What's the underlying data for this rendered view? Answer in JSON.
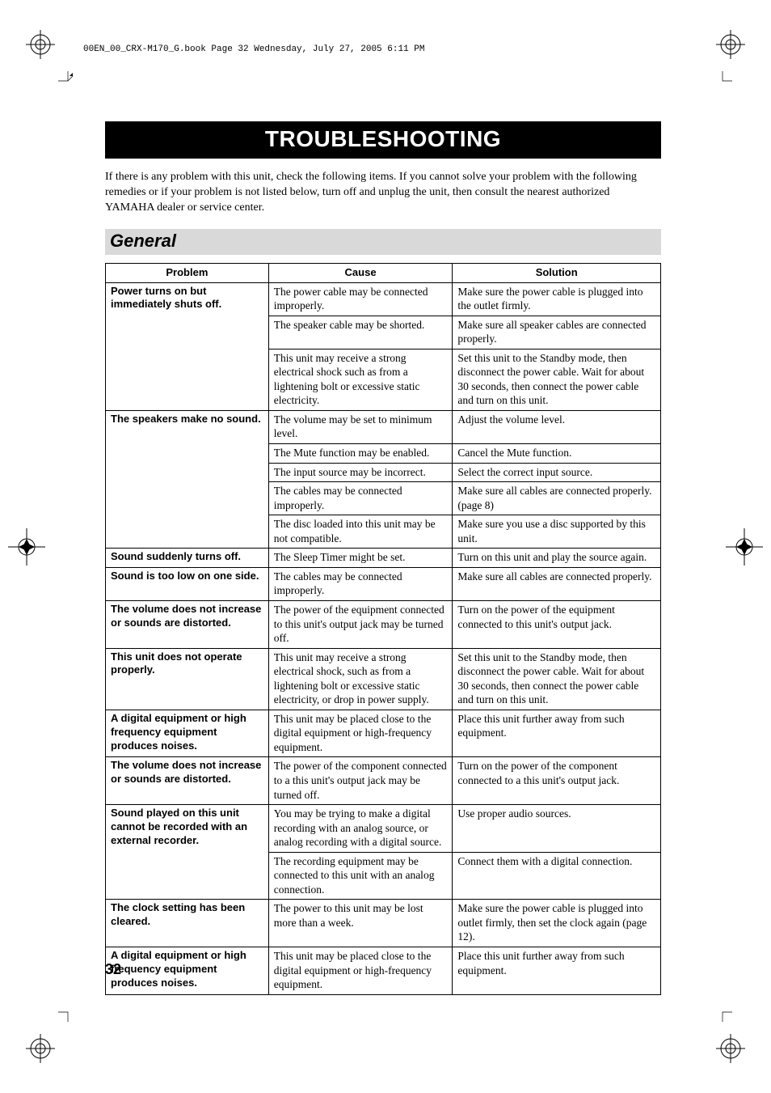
{
  "runhead": "00EN_00_CRX-M170_G.book  Page 32  Wednesday, July 27, 2005  6:11 PM",
  "title": "TROUBLESHOOTING",
  "intro": "If there is any problem with this unit, check the following items. If you cannot solve your problem with the following remedies or if your problem is not listed below, turn off and unplug the unit, then consult the nearest authorized YAMAHA dealer or service center.",
  "section": "General",
  "headers": {
    "problem": "Problem",
    "cause": "Cause",
    "solution": "Solution"
  },
  "rows": [
    {
      "problem": "Power turns on but immediately shuts off.",
      "prow": 3,
      "cause": "The power cable may be connected improperly.",
      "solution": "Make sure the power cable is plugged into the outlet firmly."
    },
    {
      "cause": "The speaker cable may be shorted.",
      "solution": "Make sure all speaker cables are connected properly."
    },
    {
      "cause": "This unit may receive a strong electrical shock such as from a lightening bolt or excessive static electricity.",
      "solution": "Set this unit to the Standby mode, then disconnect the power cable. Wait for about 30 seconds, then connect the power cable and turn on this unit."
    },
    {
      "problem": "The speakers make no sound.",
      "prow": 5,
      "cause": "The volume may be set to minimum level.",
      "solution": "Adjust the volume level."
    },
    {
      "cause": "The Mute function may be enabled.",
      "solution": "Cancel the Mute function."
    },
    {
      "cause": "The input source may be incorrect.",
      "solution": "Select the correct input source."
    },
    {
      "cause": "The cables may be connected improperly.",
      "solution": "Make sure all cables are connected properly. (page 8)"
    },
    {
      "cause": "The disc loaded into this unit may be not compatible.",
      "solution": "Make sure you use a disc supported by this unit."
    },
    {
      "problem": "Sound suddenly turns off.",
      "prow": 1,
      "cause": "The Sleep Timer might be set.",
      "solution": "Turn on this unit and play the source again."
    },
    {
      "problem": "Sound is too low on one side.",
      "prow": 1,
      "cause": "The cables may be connected improperly.",
      "solution": "Make sure all cables are connected properly."
    },
    {
      "problem": "The volume does not increase or sounds are distorted.",
      "prow": 1,
      "cause": "The power of the equipment connected to this unit's output jack may be turned off.",
      "solution": "Turn on the power of the equipment connected to this unit's output jack."
    },
    {
      "problem": "This unit does not operate properly.",
      "prow": 1,
      "cause": "This unit may receive a strong electrical shock, such as from a lightening bolt or excessive static electricity, or drop in power supply.",
      "solution": "Set this unit to the Standby mode, then disconnect the power cable. Wait for about 30 seconds, then connect the power cable and turn on this unit."
    },
    {
      "problem": "A digital equipment or high frequency equipment produces noises.",
      "prow": 1,
      "cause": "This unit may be placed close to the digital equipment or high-frequency equipment.",
      "solution": "Place this unit further away from such equipment."
    },
    {
      "problem": "The volume does not increase or sounds are distorted.",
      "prow": 1,
      "cause": "The power of the component connected to a this unit's output jack may be turned off.",
      "solution": "Turn on the power of the component connected to a this unit's output jack."
    },
    {
      "problem": "Sound played on this unit cannot be recorded with an external recorder.",
      "prow": 2,
      "cause": "You may be trying to make a digital recording with an analog source, or analog recording with a digital source.",
      "solution": "Use proper audio sources."
    },
    {
      "cause": "The recording equipment may be connected to this unit with an analog connection.",
      "solution": "Connect them with a digital connection."
    },
    {
      "problem": "The clock setting has been cleared.",
      "prow": 1,
      "cause": "The power to this unit may be lost more than a week.",
      "solution": "Make sure the power cable is plugged into outlet firmly, then set the clock again (page 12)."
    },
    {
      "problem": "A digital equipment or high frequency equipment produces noises.",
      "prow": 1,
      "cause": "This unit may be placed close to the digital equipment or high-frequency equipment.",
      "solution": "Place this unit further away from such equipment."
    }
  ],
  "pagenum": "32"
}
